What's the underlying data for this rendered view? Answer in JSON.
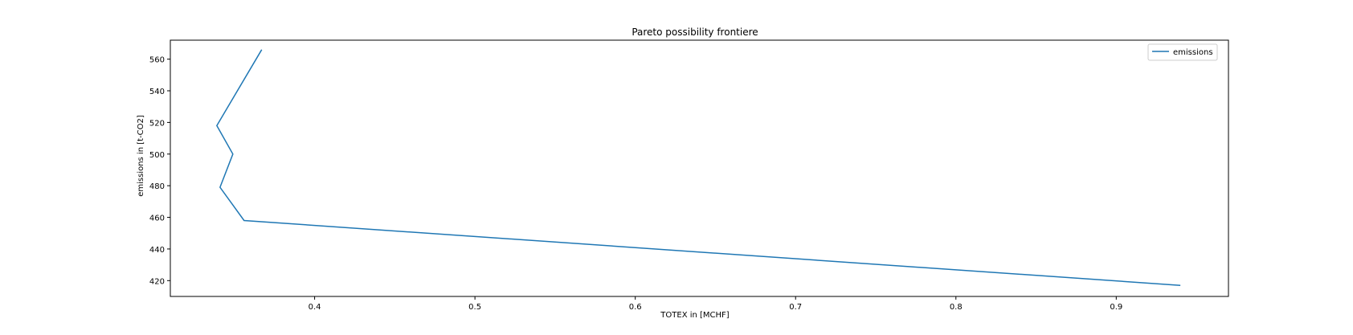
{
  "chart_data": {
    "type": "line",
    "title": "Pareto possibility frontiere",
    "xlabel": "TOTEX in [MCHF]",
    "ylabel": "emissions in [t-CO2]",
    "xlim": [
      0.31,
      0.97
    ],
    "ylim": [
      410,
      572
    ],
    "xticks": [
      0.4,
      0.5,
      0.6,
      0.7,
      0.8,
      0.9
    ],
    "xtick_labels": [
      "0.4",
      "0.5",
      "0.6",
      "0.7",
      "0.8",
      "0.9"
    ],
    "yticks": [
      420,
      440,
      460,
      480,
      500,
      520,
      540,
      560
    ],
    "ytick_labels": [
      "420",
      "440",
      "460",
      "480",
      "500",
      "520",
      "540",
      "560"
    ],
    "grid": false,
    "legend_position": "top-right",
    "series": [
      {
        "name": "emissions",
        "color": "#1f77b4",
        "x": [
          0.367,
          0.339,
          0.349,
          0.341,
          0.356,
          0.94
        ],
        "y": [
          566,
          518,
          500,
          479,
          458,
          417
        ]
      }
    ]
  }
}
